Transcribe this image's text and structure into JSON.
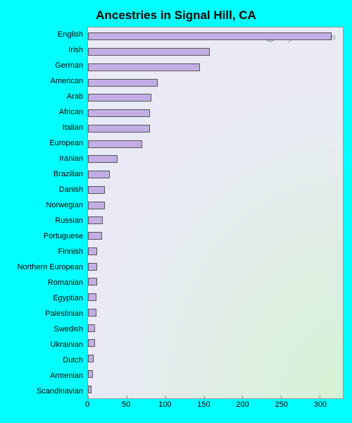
{
  "chart": {
    "type": "horizontal-bar",
    "title": "Ancestries in Signal Hill, CA",
    "title_fontsize": 17,
    "title_color": "#000000",
    "watermark": "City-Data.com",
    "outer_background": "#00ffff",
    "plot_gradient_from": "#e9eaf6",
    "plot_gradient_to": "#d6f2d4",
    "border_color": "#999999",
    "bar_color": "#c2aee4",
    "bar_border": "#555555",
    "label_fontsize": 11,
    "xlim": [
      0,
      330
    ],
    "xticks": [
      0,
      50,
      100,
      150,
      200,
      250,
      300
    ],
    "categories": [
      {
        "label": "English",
        "value": 315
      },
      {
        "label": "Irish",
        "value": 158
      },
      {
        "label": "German",
        "value": 145
      },
      {
        "label": "American",
        "value": 90
      },
      {
        "label": "Arab",
        "value": 82
      },
      {
        "label": "African",
        "value": 80
      },
      {
        "label": "Italian",
        "value": 80
      },
      {
        "label": "European",
        "value": 70
      },
      {
        "label": "Iranian",
        "value": 38
      },
      {
        "label": "Brazilian",
        "value": 28
      },
      {
        "label": "Danish",
        "value": 22
      },
      {
        "label": "Norwegian",
        "value": 22
      },
      {
        "label": "Russian",
        "value": 19
      },
      {
        "label": "Portuguese",
        "value": 18
      },
      {
        "label": "Finnish",
        "value": 12
      },
      {
        "label": "Northern European",
        "value": 12
      },
      {
        "label": "Romanian",
        "value": 12
      },
      {
        "label": "Egyptian",
        "value": 11
      },
      {
        "label": "Palestinian",
        "value": 11
      },
      {
        "label": "Swedish",
        "value": 9
      },
      {
        "label": "Ukrainian",
        "value": 9
      },
      {
        "label": "Dutch",
        "value": 7
      },
      {
        "label": "Armenian",
        "value": 6
      },
      {
        "label": "Scandinavian",
        "value": 5
      }
    ]
  }
}
